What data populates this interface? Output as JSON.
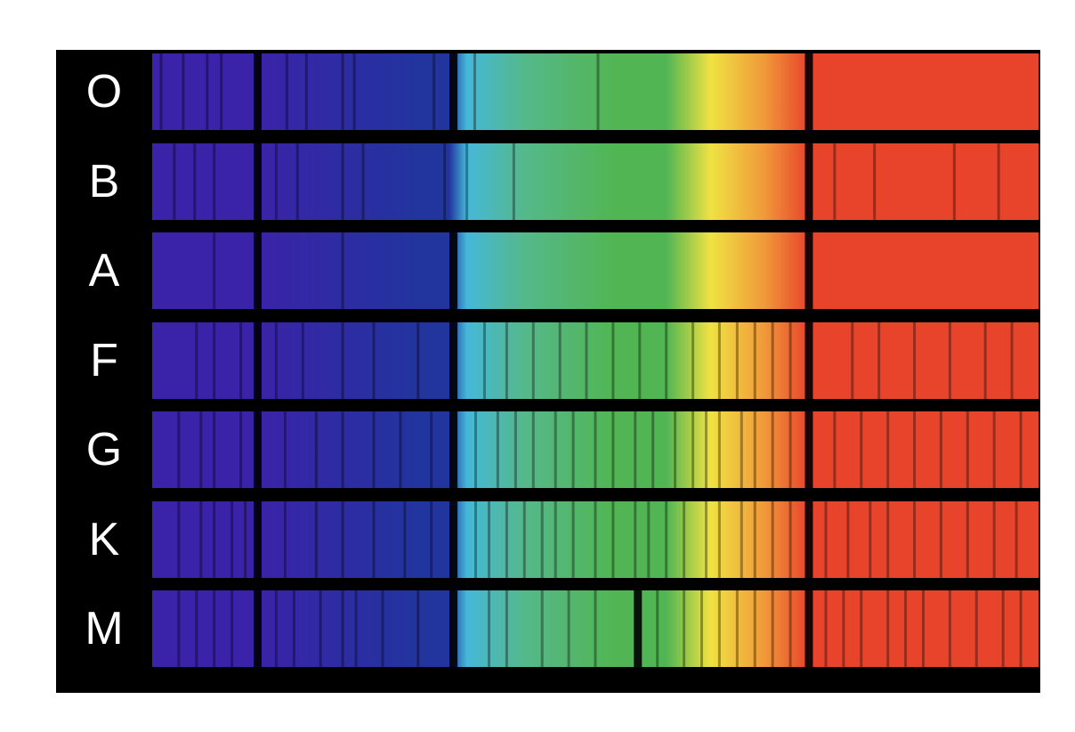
{
  "spectral_types": [
    {
      "label": "O",
      "lines": [
        0.01,
        0.035,
        0.062,
        0.078,
        0.119,
        0.152,
        0.174,
        0.215,
        0.228,
        0.318,
        0.34,
        0.364,
        0.503,
        0.741
      ]
    },
    {
      "label": "B",
      "lines": [
        0.025,
        0.048,
        0.07,
        0.119,
        0.14,
        0.164,
        0.215,
        0.238,
        0.33,
        0.355,
        0.408,
        0.741,
        0.77,
        0.815,
        0.905,
        0.955
      ]
    },
    {
      "label": "A",
      "lines": [
        0.07,
        0.119,
        0.215,
        0.34,
        0.741
      ]
    },
    {
      "label": "F",
      "lines": [
        0.05,
        0.07,
        0.1,
        0.119,
        0.14,
        0.17,
        0.215,
        0.25,
        0.3,
        0.34,
        0.375,
        0.4,
        0.43,
        0.46,
        0.49,
        0.52,
        0.55,
        0.58,
        0.61,
        0.64,
        0.66,
        0.68,
        0.7,
        0.72,
        0.741,
        0.79,
        0.82,
        0.86,
        0.9,
        0.94,
        0.97
      ]
    },
    {
      "label": "G",
      "lines": [
        0.03,
        0.055,
        0.07,
        0.1,
        0.119,
        0.15,
        0.185,
        0.215,
        0.25,
        0.28,
        0.315,
        0.34,
        0.365,
        0.39,
        0.41,
        0.43,
        0.455,
        0.475,
        0.5,
        0.52,
        0.545,
        0.565,
        0.59,
        0.61,
        0.625,
        0.64,
        0.665,
        0.68,
        0.7,
        0.72,
        0.741,
        0.77,
        0.8,
        0.83,
        0.86,
        0.89,
        0.92,
        0.95,
        0.98
      ]
    },
    {
      "label": "K",
      "lines": [
        0.03,
        0.055,
        0.07,
        0.09,
        0.105,
        0.119,
        0.15,
        0.185,
        0.215,
        0.25,
        0.285,
        0.315,
        0.34,
        0.365,
        0.38,
        0.4,
        0.42,
        0.44,
        0.455,
        0.475,
        0.5,
        0.52,
        0.545,
        0.56,
        0.58,
        0.6,
        0.625,
        0.64,
        0.665,
        0.68,
        0.7,
        0.72,
        0.741,
        0.76,
        0.785,
        0.81,
        0.83,
        0.86,
        0.89,
        0.92,
        0.95,
        0.975
      ]
    },
    {
      "label": "M",
      "lines": [
        0.03,
        0.05,
        0.07,
        0.09,
        0.119,
        0.14,
        0.16,
        0.19,
        0.215,
        0.23,
        0.26,
        0.3,
        0.34,
        0.38,
        0.4,
        0.44,
        0.47,
        0.5,
        0.548,
        0.57,
        0.6,
        0.62,
        0.64,
        0.66,
        0.68,
        0.7,
        0.72,
        0.741,
        0.76,
        0.78,
        0.8,
        0.83,
        0.85,
        0.87,
        0.9,
        0.93,
        0.96,
        0.98
      ]
    }
  ],
  "colors": {
    "violet": "#3a23a8",
    "blue": "#22349e",
    "cyan": "#45b8d8",
    "teal": "#55b88a",
    "green": "#52b554",
    "yellow": "#f0e242",
    "orange": "#f09a3a",
    "red": "#e8442c"
  }
}
